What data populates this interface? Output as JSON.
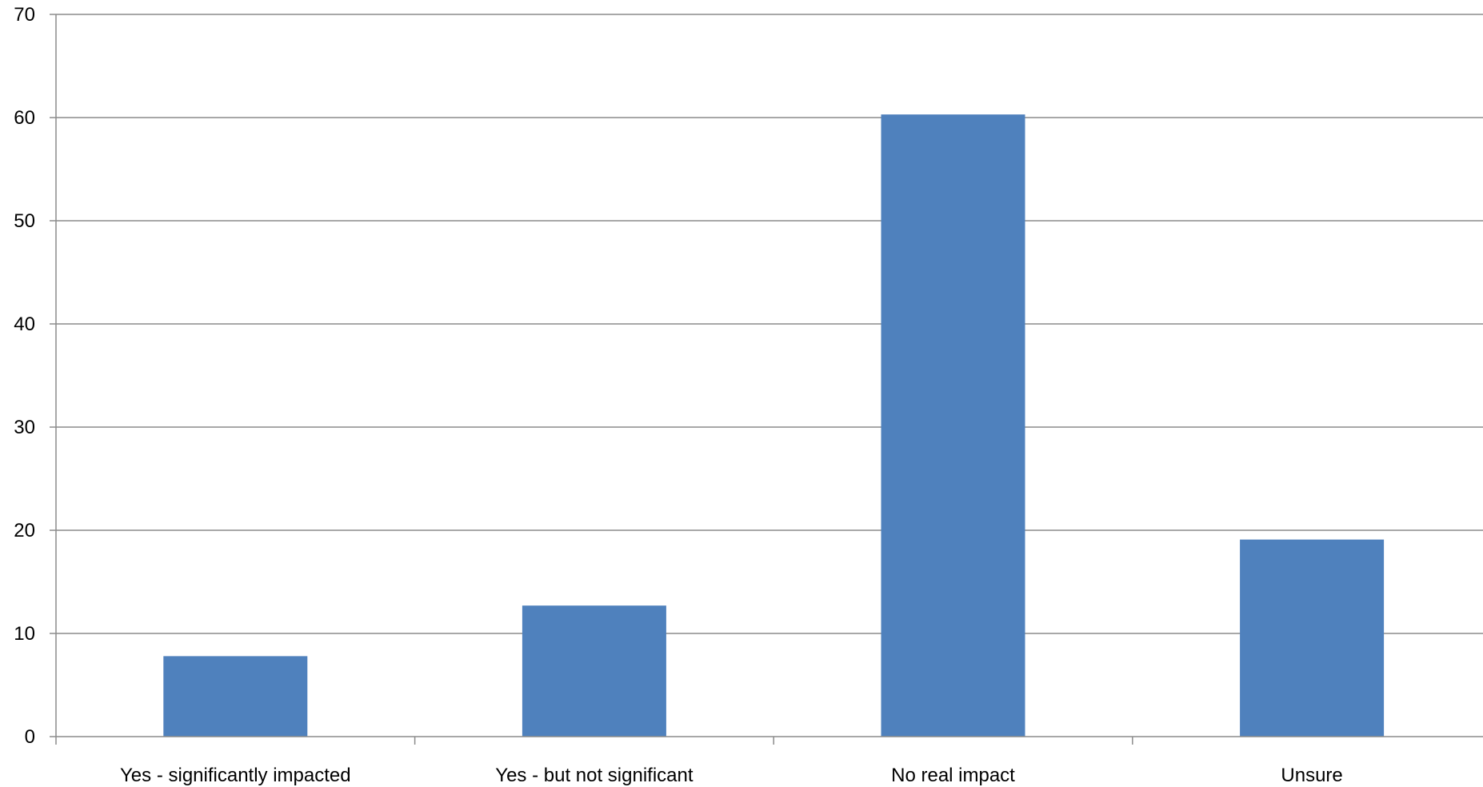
{
  "chart_data": {
    "type": "bar",
    "title": "",
    "xlabel": "",
    "ylabel": "",
    "categories": [
      "Yes - significantly impacted",
      "Yes - but not significant",
      "No real impact",
      "Unsure"
    ],
    "values": [
      7.8,
      12.7,
      60.3,
      19.1
    ],
    "ylim": [
      0,
      70
    ],
    "yticks": [
      "0",
      "10",
      "20",
      "30",
      "40",
      "50",
      "60",
      "70"
    ],
    "grid": true,
    "legend": "none",
    "bar_color": "#4f81bd",
    "grid_color": "#8c8c8c"
  }
}
